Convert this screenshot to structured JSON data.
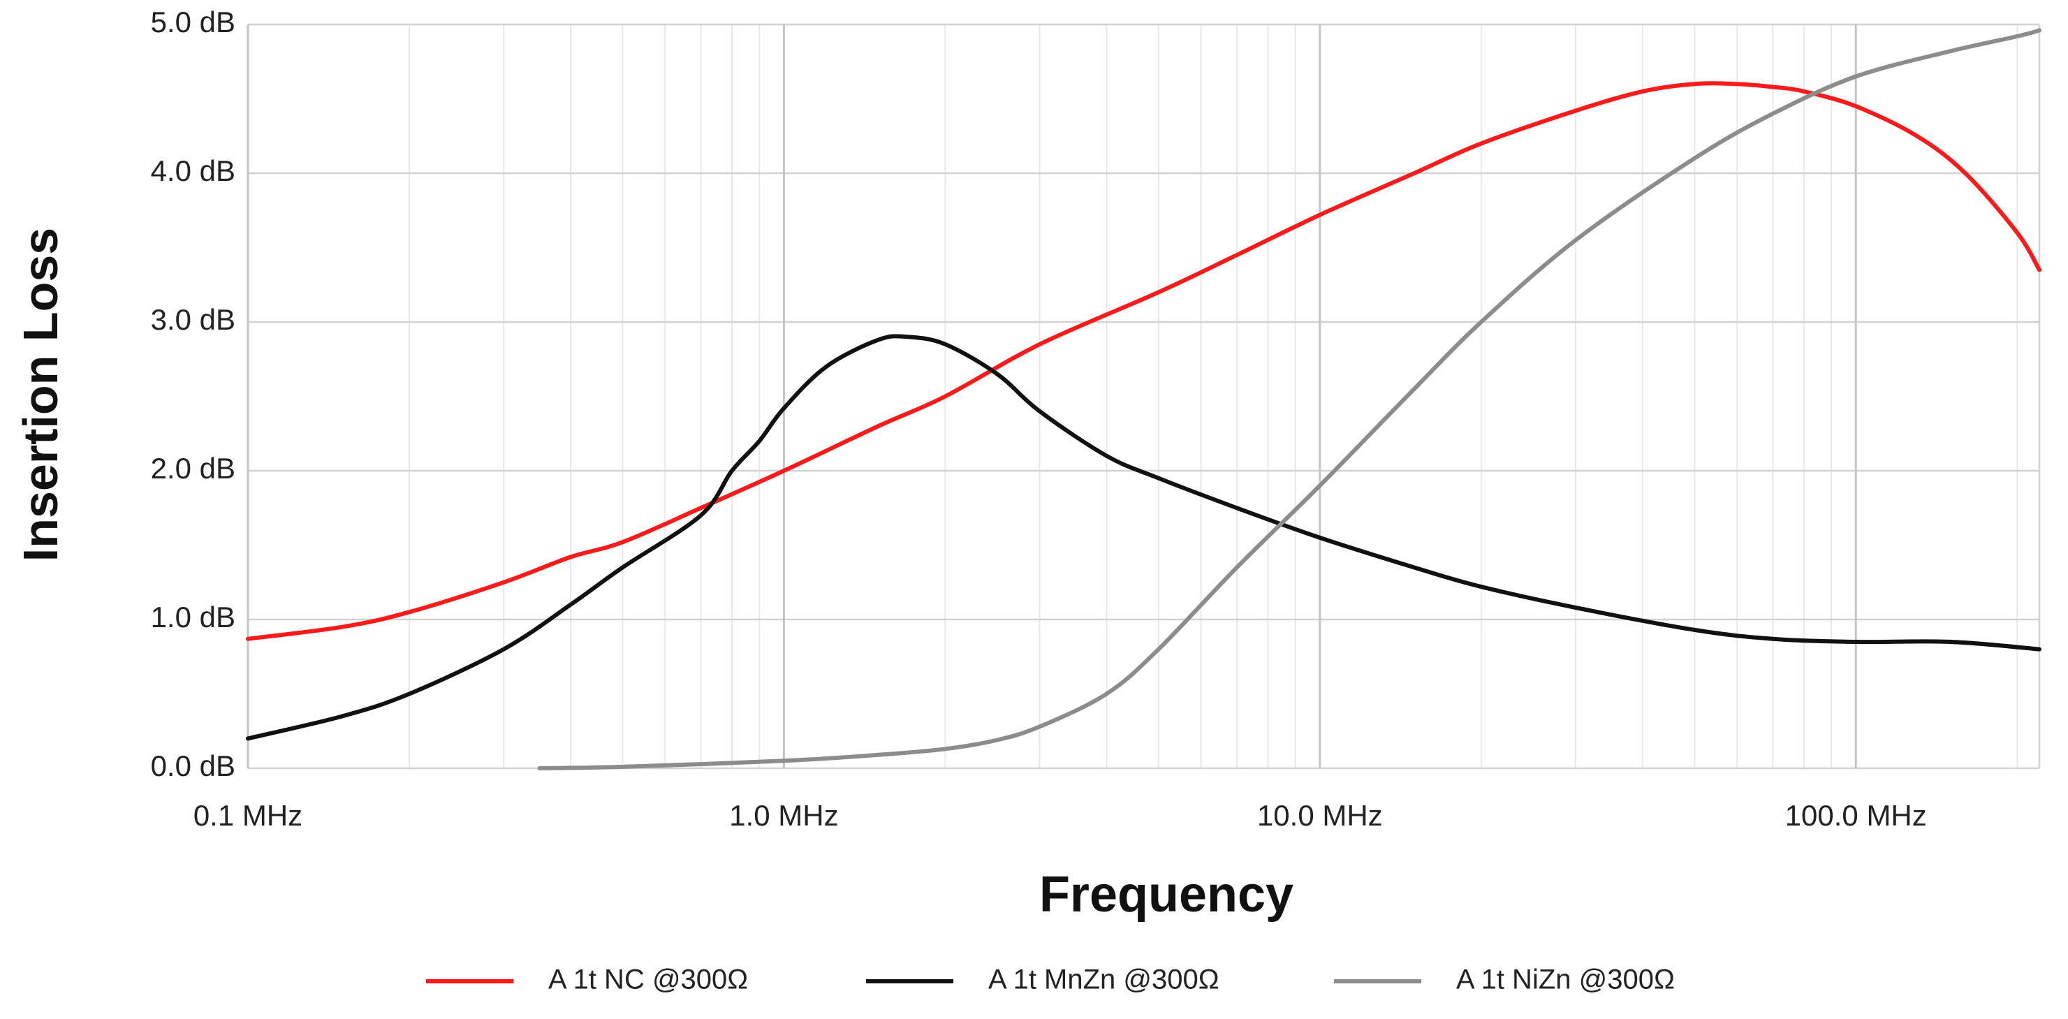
{
  "chart_data": {
    "type": "line",
    "title": "",
    "xlabel": "Frequency",
    "ylabel": "Insertion Loss",
    "xscale": "log",
    "xlim_mhz": [
      0.1,
      220
    ],
    "ylim": [
      0,
      5
    ],
    "grid": true,
    "legend_position": "bottom",
    "x_ticks": [
      {
        "value": 0.1,
        "label": "0.1 MHz"
      },
      {
        "value": 1,
        "label": "1.0 MHz"
      },
      {
        "value": 10,
        "label": "10.0 MHz"
      },
      {
        "value": 100,
        "label": "100.0 MHz"
      }
    ],
    "y_ticks": [
      {
        "value": 0,
        "label": "0.0 dB"
      },
      {
        "value": 1,
        "label": "1.0 dB"
      },
      {
        "value": 2,
        "label": "2.0 dB"
      },
      {
        "value": 3,
        "label": "3.0 dB"
      },
      {
        "value": 4,
        "label": "4.0 dB"
      },
      {
        "value": 5,
        "label": "5.0 dB"
      }
    ],
    "series": [
      {
        "name": "A 1t NC @300Ω",
        "color": "#ff1a1a",
        "x": [
          0.1,
          0.15,
          0.2,
          0.3,
          0.4,
          0.5,
          0.7,
          1.0,
          1.5,
          2.0,
          3.0,
          5.0,
          7.0,
          10,
          15,
          20,
          30,
          40,
          50,
          60,
          70,
          80,
          100,
          130,
          160,
          200,
          220
        ],
        "y": [
          0.87,
          0.95,
          1.05,
          1.25,
          1.42,
          1.52,
          1.75,
          2.0,
          2.3,
          2.5,
          2.85,
          3.2,
          3.45,
          3.72,
          4.0,
          4.2,
          4.42,
          4.55,
          4.6,
          4.6,
          4.58,
          4.55,
          4.45,
          4.25,
          4.0,
          3.6,
          3.35
        ]
      },
      {
        "name": "A 1t MnZn @300Ω",
        "color": "#111111",
        "x": [
          0.1,
          0.15,
          0.2,
          0.3,
          0.4,
          0.5,
          0.7,
          0.8,
          0.9,
          1.0,
          1.2,
          1.5,
          1.7,
          2.0,
          2.5,
          3.0,
          4.0,
          5.0,
          7.0,
          10,
          15,
          20,
          30,
          50,
          70,
          100,
          150,
          220
        ],
        "y": [
          0.2,
          0.35,
          0.5,
          0.8,
          1.1,
          1.35,
          1.7,
          2.0,
          2.2,
          2.42,
          2.7,
          2.88,
          2.9,
          2.85,
          2.65,
          2.4,
          2.1,
          1.95,
          1.75,
          1.55,
          1.35,
          1.22,
          1.08,
          0.93,
          0.87,
          0.85,
          0.85,
          0.8
        ]
      },
      {
        "name": "A 1t NiZn @300Ω",
        "color": "#8c8c8c",
        "x": [
          0.35,
          0.5,
          1.0,
          1.5,
          2.0,
          2.5,
          3.0,
          4.0,
          5.0,
          7.0,
          10,
          15,
          20,
          30,
          50,
          70,
          100,
          150,
          200,
          220
        ],
        "y": [
          0.0,
          0.01,
          0.05,
          0.09,
          0.13,
          0.19,
          0.28,
          0.5,
          0.8,
          1.35,
          1.9,
          2.55,
          3.0,
          3.55,
          4.1,
          4.4,
          4.65,
          4.82,
          4.92,
          4.96
        ]
      }
    ]
  }
}
